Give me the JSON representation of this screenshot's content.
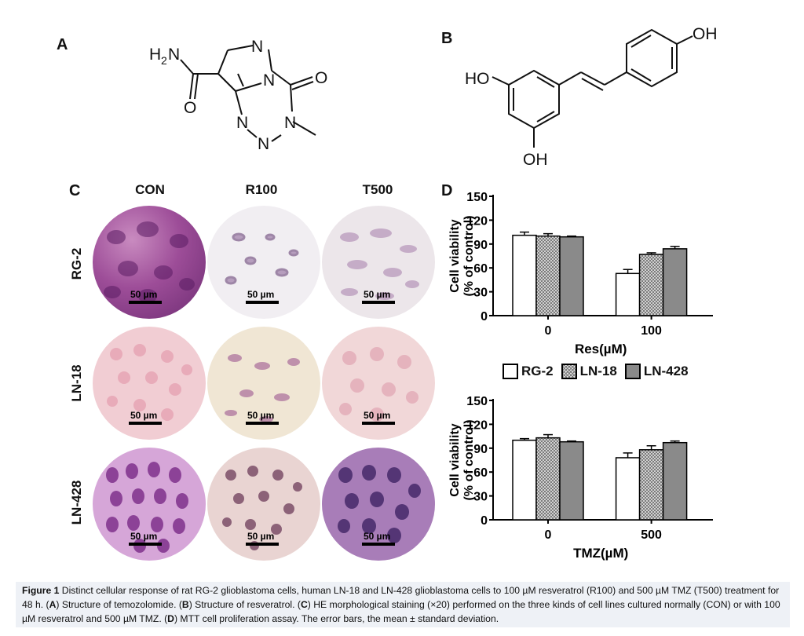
{
  "panels": {
    "a": "A",
    "b": "B",
    "c": "C",
    "d": "D"
  },
  "structure_a": {
    "atoms": {
      "n1": "N",
      "n2": "N",
      "n3": "N",
      "n4": "N",
      "n5": "N",
      "o1": "O",
      "o2": "O",
      "h2n": "H",
      "sub2": "2",
      "nh2": "N"
    }
  },
  "structure_b": {
    "oh_left": "HO",
    "oh_right": "OH",
    "oh_bottom": "OH"
  },
  "micrographs": {
    "columns": [
      "CON",
      "R100",
      "T500"
    ],
    "rows": [
      "RG-2",
      "LN-18",
      "LN-428"
    ],
    "scale_label": "50 µm"
  },
  "legend": {
    "items": [
      "RG-2",
      "LN-18",
      "LN-428"
    ]
  },
  "chart_data": [
    {
      "type": "bar",
      "ylabel": "Cell viability\n(% of control)",
      "ylabel_line1": "Cell viability",
      "ylabel_line2": "(% of control)",
      "xlabel": "Res(µM)",
      "categories": [
        "0",
        "100"
      ],
      "ylim": [
        0,
        150
      ],
      "yticks": [
        "0",
        "30",
        "60",
        "90",
        "120",
        "150"
      ],
      "series": [
        {
          "name": "RG-2",
          "values": [
            101,
            53
          ],
          "errors": [
            4,
            5
          ]
        },
        {
          "name": "LN-18",
          "values": [
            100,
            77
          ],
          "errors": [
            3,
            2
          ]
        },
        {
          "name": "LN-428",
          "values": [
            99,
            84
          ],
          "errors": [
            1,
            3
          ]
        }
      ]
    },
    {
      "type": "bar",
      "ylabel": "Cell viability\n(% of control)",
      "ylabel_line1": "Cell viability",
      "ylabel_line2": "(% of control)",
      "xlabel": "TMZ(µM)",
      "categories": [
        "0",
        "500"
      ],
      "ylim": [
        0,
        150
      ],
      "yticks": [
        "0",
        "30",
        "60",
        "90",
        "120",
        "150"
      ],
      "series": [
        {
          "name": "RG-2",
          "values": [
            100,
            78
          ],
          "errors": [
            2,
            6
          ]
        },
        {
          "name": "LN-18",
          "values": [
            103,
            88
          ],
          "errors": [
            4,
            5
          ]
        },
        {
          "name": "LN-428",
          "values": [
            98,
            97
          ],
          "errors": [
            1,
            2
          ]
        }
      ]
    }
  ],
  "caption": {
    "figure_label": "Figure 1",
    "intro": " Distinct cellular response of rat RG-2 glioblastoma cells, human LN-18 and LN-428 glioblastoma cells to 100 µM resveratrol (R100) and 500 µM TMZ (T500) treatment for 48 h. (",
    "a_ref": "A",
    "a_text": ") Structure of temozolomide. (",
    "b_ref": "B",
    "b_text": ") Structure of resveratrol. (",
    "c_ref": "C",
    "c_text": ") HE morphological staining (×20) performed on the three kinds of cell lines cultured normally (CON) or with 100 µM resveratrol and 500 µM TMZ. (",
    "d_ref": "D",
    "d_text": ") MTT cell proliferation assay. The error bars, the mean ± standard deviation."
  }
}
